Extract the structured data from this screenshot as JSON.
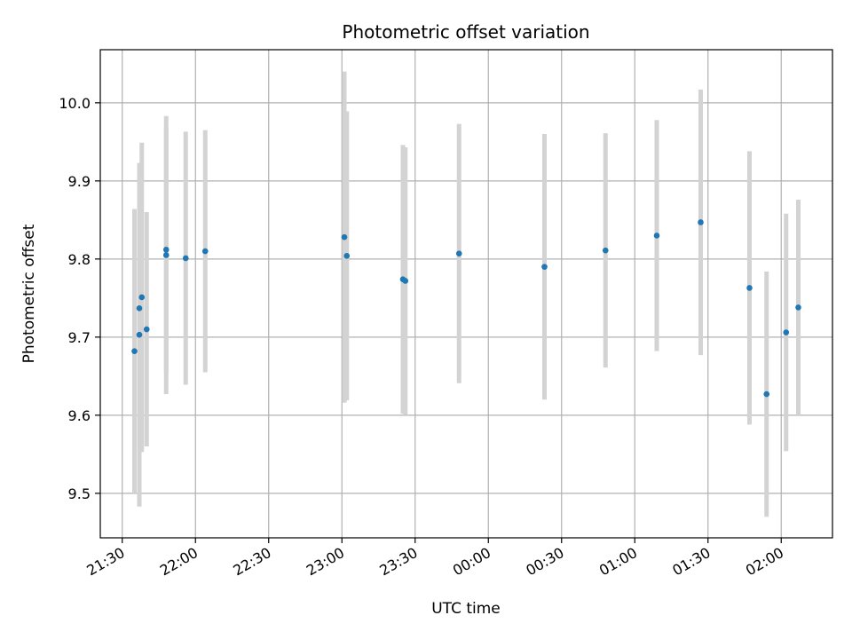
{
  "chart_data": {
    "type": "scatter",
    "title": "Photometric offset variation",
    "xlabel": "UTC time",
    "ylabel": "Photometric offset",
    "x_start": "21:30",
    "x_ticks": [
      "21:30",
      "22:00",
      "22:30",
      "23:00",
      "23:30",
      "00:00",
      "00:30",
      "01:00",
      "01:30",
      "02:00"
    ],
    "xlim": [
      "21:21",
      "02:21"
    ],
    "ylim": [
      9.443,
      10.068
    ],
    "y_ticks": [
      9.5,
      9.6,
      9.7,
      9.8,
      9.9,
      10.0
    ],
    "y_tick_labels": [
      "9.5",
      "9.6",
      "9.7",
      "9.8",
      "9.9",
      "10.0"
    ],
    "grid": true,
    "point_color": "#1f77b4",
    "errorbar_color": "#d3d3d3",
    "points": [
      {
        "x": "21:35",
        "y": 9.682,
        "err": 0.182
      },
      {
        "x": "21:37",
        "y": 9.703,
        "err": 0.22
      },
      {
        "x": "21:37",
        "y": 9.737,
        "err": 0.185
      },
      {
        "x": "21:38",
        "y": 9.751,
        "err": 0.198
      },
      {
        "x": "21:40",
        "y": 9.71,
        "err": 0.15
      },
      {
        "x": "21:48",
        "y": 9.812,
        "err": 0.157
      },
      {
        "x": "21:48",
        "y": 9.805,
        "err": 0.178
      },
      {
        "x": "21:56",
        "y": 9.801,
        "err": 0.162
      },
      {
        "x": "22:04",
        "y": 9.81,
        "err": 0.155
      },
      {
        "x": "23:01",
        "y": 9.828,
        "err": 0.212
      },
      {
        "x": "23:02",
        "y": 9.804,
        "err": 0.185
      },
      {
        "x": "23:25",
        "y": 9.774,
        "err": 0.172
      },
      {
        "x": "23:26",
        "y": 9.772,
        "err": 0.171
      },
      {
        "x": "23:48",
        "y": 9.807,
        "err": 0.166
      },
      {
        "x": "00:23",
        "y": 9.79,
        "err": 0.17
      },
      {
        "x": "00:48",
        "y": 9.811,
        "err": 0.15
      },
      {
        "x": "01:09",
        "y": 9.83,
        "err": 0.148
      },
      {
        "x": "01:27",
        "y": 9.847,
        "err": 0.17
      },
      {
        "x": "01:47",
        "y": 9.763,
        "err": 0.175
      },
      {
        "x": "01:54",
        "y": 9.627,
        "err": 0.157
      },
      {
        "x": "02:02",
        "y": 9.706,
        "err": 0.152
      },
      {
        "x": "02:07",
        "y": 9.738,
        "err": 0.138
      }
    ]
  }
}
